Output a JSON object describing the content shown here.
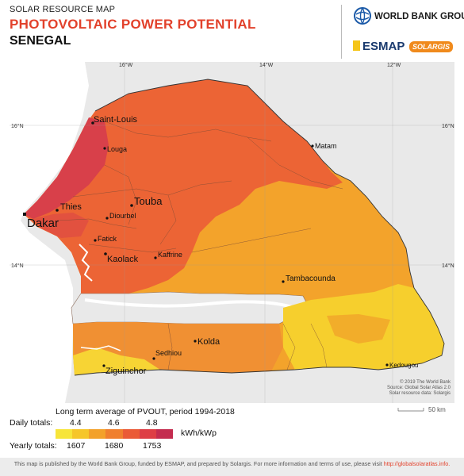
{
  "header": {
    "subtitle_top": "SOLAR RESOURCE MAP",
    "title": "PHOTOVOLTAIC POWER POTENTIAL",
    "country": "SENEGAL"
  },
  "logos": {
    "world_bank": "WORLD BANK GROUP",
    "esmap": "ESMAP",
    "solargis": "SOLARGIS"
  },
  "map": {
    "graticule": {
      "lon_labels": [
        "16°W",
        "14°W",
        "12°W"
      ],
      "lat_labels": [
        "16°N",
        "14°N"
      ]
    },
    "cities": [
      {
        "name": "Saint-Louis",
        "size": "med"
      },
      {
        "name": "Louga",
        "size": "small"
      },
      {
        "name": "Matam",
        "size": "small"
      },
      {
        "name": "Thies",
        "size": "med"
      },
      {
        "name": "Dakar",
        "size": "large"
      },
      {
        "name": "Touba",
        "size": "large"
      },
      {
        "name": "Diourbel",
        "size": "small"
      },
      {
        "name": "Fatick",
        "size": "small"
      },
      {
        "name": "Kaolack",
        "size": "med"
      },
      {
        "name": "Kaffrine",
        "size": "small"
      },
      {
        "name": "Tambacounda",
        "size": "med"
      },
      {
        "name": "Sedhiou",
        "size": "small"
      },
      {
        "name": "Kolda",
        "size": "med"
      },
      {
        "name": "Ziguinchor",
        "size": "med"
      },
      {
        "name": "Kedougou",
        "size": "small"
      }
    ],
    "credits": [
      "© 2019 The World Bank",
      "Source: Global Solar Atlas 2.0",
      "Solar resource data: Solargis"
    ],
    "scale_label": "50 km"
  },
  "legend": {
    "title": "Long term average of PVOUT, period 1994-2018",
    "daily_label": "Daily totals:",
    "daily_ticks": [
      "4.4",
      "4.6",
      "4.8"
    ],
    "yearly_label": "Yearly totals:",
    "yearly_ticks": [
      "1607",
      "1680",
      "1753"
    ],
    "unit": "kWh/kWp",
    "colors": [
      "#f7e53a",
      "#f6c62a",
      "#f3a12a",
      "#f07f2e",
      "#ea5a36",
      "#de3e45",
      "#c42c4f"
    ]
  },
  "footer": {
    "text": "This map is published by the World Bank Group, funded by ESMAP, and prepared by Solargis. For more information and terms of use, please visit",
    "link": "http://globalsolaratlas.info."
  }
}
